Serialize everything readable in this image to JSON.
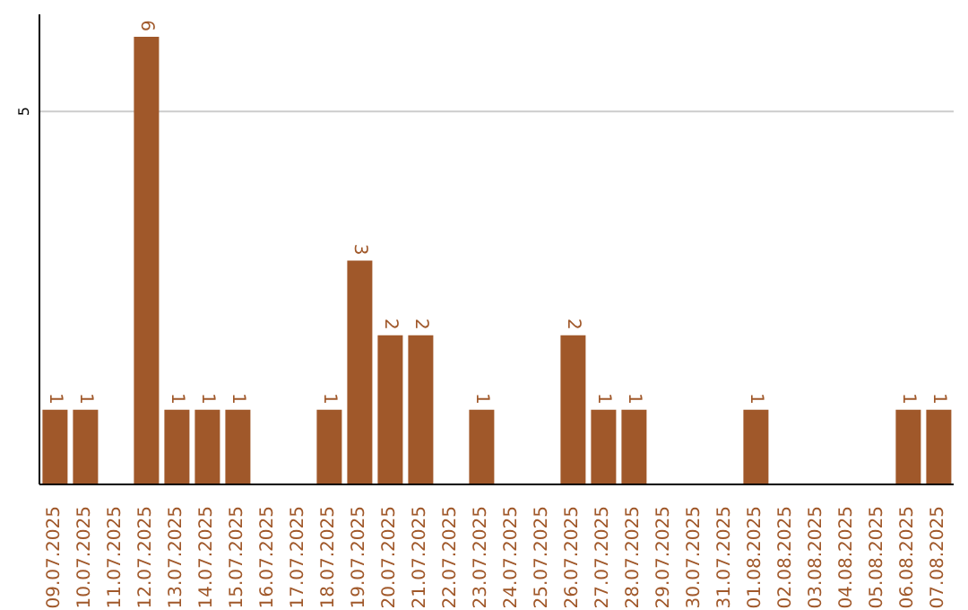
{
  "chart_data": {
    "type": "bar",
    "categories": [
      "09.07.2025",
      "10.07.2025",
      "11.07.2025",
      "12.07.2025",
      "13.07.2025",
      "14.07.2025",
      "15.07.2025",
      "16.07.2025",
      "17.07.2025",
      "18.07.2025",
      "19.07.2025",
      "20.07.2025",
      "21.07.2025",
      "22.07.2025",
      "23.07.2025",
      "24.07.2025",
      "25.07.2025",
      "26.07.2025",
      "27.07.2025",
      "28.07.2025",
      "29.07.2025",
      "30.07.2025",
      "31.07.2025",
      "01.08.2025",
      "02.08.2025",
      "03.08.2025",
      "04.08.2025",
      "05.08.2025",
      "06.08.2025",
      "07.08.2025"
    ],
    "values": [
      1,
      1,
      0,
      6,
      1,
      1,
      1,
      0,
      0,
      1,
      3,
      2,
      2,
      0,
      1,
      0,
      0,
      2,
      1,
      1,
      0,
      0,
      0,
      1,
      0,
      0,
      0,
      0,
      1,
      1
    ],
    "value_labels": [
      "1",
      "1",
      null,
      "6",
      "1",
      "1",
      "1",
      null,
      null,
      "1",
      "3",
      "2",
      "2",
      null,
      "1",
      null,
      null,
      "2",
      "1",
      "1",
      null,
      null,
      null,
      "1",
      null,
      null,
      null,
      null,
      "1",
      "1"
    ],
    "color": "#a0582a",
    "ylim": [
      0,
      6.3
    ],
    "yticks": [
      5
    ],
    "grid": "y"
  }
}
